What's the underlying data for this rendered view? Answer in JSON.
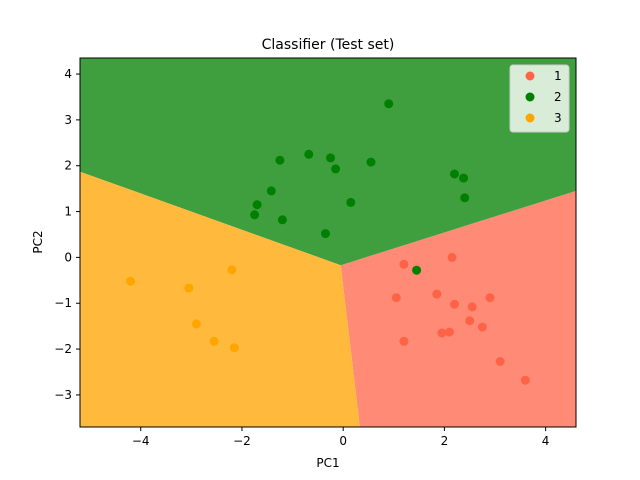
{
  "chart_data": {
    "type": "scatter",
    "title": "Classifier (Test set)",
    "xlabel": "PC1",
    "ylabel": "PC2",
    "xlim": [
      -5.2,
      4.6
    ],
    "ylim": [
      -3.7,
      4.35
    ],
    "xticks": [
      -4,
      -2,
      0,
      2,
      4
    ],
    "yticks": [
      -3,
      -2,
      -1,
      0,
      1,
      2,
      3,
      4
    ],
    "xtick_labels": [
      "−4",
      "−2",
      "0",
      "2",
      "4"
    ],
    "ytick_labels": [
      "−3",
      "−2",
      "−1",
      "0",
      "1",
      "2",
      "3",
      "4"
    ],
    "grid": false,
    "legend_position": "top-right",
    "regions": [
      {
        "class": "1",
        "color": "#ff8a75",
        "polygon": [
          [
            -0.05,
            -0.17
          ],
          [
            4.6,
            1.45
          ],
          [
            4.6,
            -3.7
          ],
          [
            0.33,
            -3.7
          ]
        ]
      },
      {
        "class": "2",
        "color": "#3f9f3f",
        "polygon": [
          [
            -5.2,
            1.87
          ],
          [
            -5.2,
            4.35
          ],
          [
            4.6,
            4.35
          ],
          [
            4.6,
            1.45
          ],
          [
            -0.05,
            -0.17
          ]
        ]
      },
      {
        "class": "3",
        "color": "#ffb93c",
        "polygon": [
          [
            -5.2,
            1.87
          ],
          [
            -0.05,
            -0.17
          ],
          [
            0.33,
            -3.7
          ],
          [
            -5.2,
            -3.7
          ]
        ]
      }
    ],
    "series": [
      {
        "name": "1",
        "color": "#ff6347",
        "points": [
          [
            1.2,
            -0.15
          ],
          [
            2.15,
            0.0
          ],
          [
            1.05,
            -0.88
          ],
          [
            1.85,
            -0.8
          ],
          [
            2.2,
            -1.02
          ],
          [
            2.55,
            -1.08
          ],
          [
            2.9,
            -0.88
          ],
          [
            2.5,
            -1.38
          ],
          [
            2.75,
            -1.52
          ],
          [
            1.95,
            -1.65
          ],
          [
            2.1,
            -1.63
          ],
          [
            1.2,
            -1.83
          ],
          [
            3.1,
            -2.27
          ],
          [
            3.6,
            -2.68
          ]
        ]
      },
      {
        "name": "2",
        "color": "#008000",
        "points": [
          [
            0.9,
            3.35
          ],
          [
            -0.68,
            2.25
          ],
          [
            -0.25,
            2.17
          ],
          [
            -1.25,
            2.12
          ],
          [
            -0.15,
            1.93
          ],
          [
            0.55,
            2.08
          ],
          [
            2.2,
            1.82
          ],
          [
            2.38,
            1.73
          ],
          [
            -1.42,
            1.45
          ],
          [
            -1.7,
            1.15
          ],
          [
            -1.75,
            0.93
          ],
          [
            -1.2,
            0.82
          ],
          [
            0.15,
            1.2
          ],
          [
            -0.35,
            0.52
          ],
          [
            2.4,
            1.3
          ],
          [
            1.45,
            -0.28
          ]
        ]
      },
      {
        "name": "3",
        "color": "#ffa500",
        "points": [
          [
            -4.2,
            -0.52
          ],
          [
            -2.2,
            -0.27
          ],
          [
            -3.05,
            -0.67
          ],
          [
            -2.9,
            -1.45
          ],
          [
            -2.55,
            -1.83
          ],
          [
            -2.15,
            -1.97
          ]
        ]
      }
    ]
  }
}
